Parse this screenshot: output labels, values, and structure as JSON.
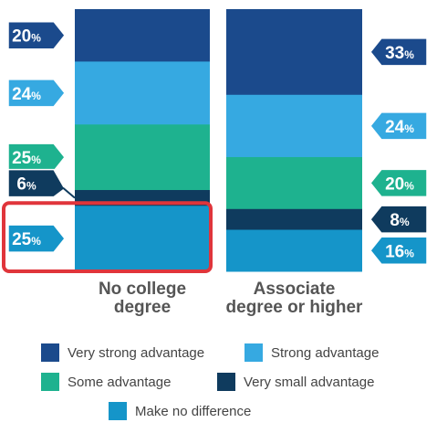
{
  "chart_data": {
    "type": "bar",
    "stacked": true,
    "percent": true,
    "categories": [
      "No college degree",
      "Associate degree or higher"
    ],
    "category_lines": [
      [
        "No college",
        "degree"
      ],
      [
        "Associate",
        "degree or higher"
      ]
    ],
    "series": [
      {
        "name": "Very strong advantage",
        "color": "#1b4a8c",
        "values": [
          20,
          33
        ]
      },
      {
        "name": "Strong advantage",
        "color": "#36a9e1",
        "values": [
          24,
          24
        ]
      },
      {
        "name": "Some advantage",
        "color": "#1eb28f",
        "values": [
          25,
          20
        ]
      },
      {
        "name": "Very small advantage",
        "color": "#0f3b5e",
        "values": [
          6,
          8
        ]
      },
      {
        "name": "Make no difference",
        "color": "#1595c9",
        "values": [
          25,
          16
        ]
      }
    ],
    "highlight": {
      "category": "No college degree",
      "series": "Make no difference",
      "color": "#e0353b"
    },
    "value_suffix": "%",
    "legend_position": "bottom"
  }
}
